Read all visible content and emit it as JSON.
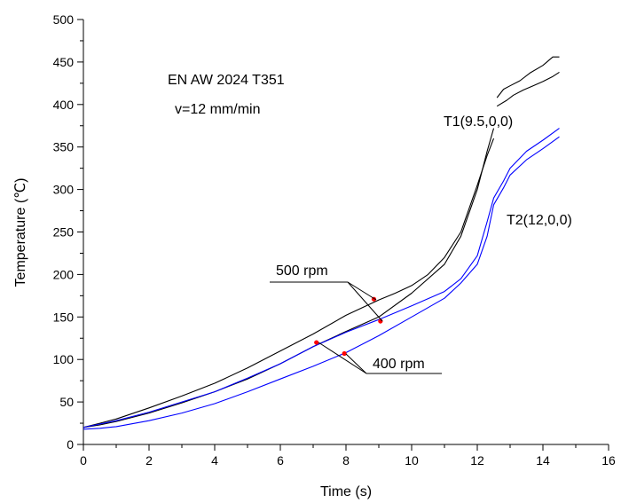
{
  "chart_data": {
    "type": "line",
    "xlabel": "Time (s)",
    "ylabel": "Temperature (℃)",
    "xlim": [
      0,
      16
    ],
    "ylim": [
      0,
      500
    ],
    "x_ticks": [
      0,
      2,
      4,
      6,
      8,
      10,
      12,
      14,
      16
    ],
    "y_ticks": [
      0,
      50,
      100,
      150,
      200,
      250,
      300,
      350,
      400,
      450,
      500
    ],
    "grid": false,
    "annotations": {
      "material": "EN AW 2024 T351",
      "speed": "v=12 mm/min",
      "t1": "T1(9.5,0,0)",
      "t2": "T2(12,0,0)",
      "rpm500": "500 rpm",
      "rpm400": "400 rpm"
    },
    "series": [
      {
        "color": "#000000",
        "x": [
          0,
          0.5,
          1,
          2,
          3,
          4,
          5,
          6,
          7,
          8,
          9,
          9.5,
          10,
          10.5,
          11,
          11.5,
          12,
          12.3,
          12.5
        ],
        "y": [
          20,
          25,
          30,
          43,
          57,
          72,
          90,
          110,
          130,
          152,
          170,
          178,
          187,
          200,
          220,
          250,
          305,
          340,
          360
        ]
      },
      {
        "color": "#000000",
        "x": [
          12.6,
          12.8,
          13,
          13.3,
          13.6,
          14,
          14.3,
          14.5
        ],
        "y": [
          408,
          418,
          422,
          428,
          437,
          446,
          456,
          456
        ]
      },
      {
        "color": "#000000",
        "x": [
          0,
          0.5,
          1,
          2,
          3,
          4,
          5,
          6,
          7,
          8,
          9,
          10,
          11,
          11.5,
          12,
          12.3,
          12.5
        ],
        "y": [
          20,
          23,
          27,
          37,
          49,
          62,
          77,
          95,
          115,
          133,
          150,
          178,
          212,
          245,
          300,
          345,
          372
        ]
      },
      {
        "color": "#000000",
        "x": [
          12.6,
          12.9,
          13.1,
          13.4,
          13.7,
          14,
          14.3,
          14.5
        ],
        "y": [
          398,
          405,
          411,
          417,
          422,
          427,
          433,
          438
        ]
      },
      {
        "color": "#0000ff",
        "x": [
          0,
          0.5,
          1,
          2,
          3,
          4,
          5,
          6,
          7,
          8,
          9,
          10,
          11,
          11.5,
          12,
          12.3,
          12.5,
          12.8,
          13,
          13.5,
          14,
          14.5
        ],
        "y": [
          20,
          24,
          28,
          38,
          50,
          62,
          78,
          95,
          115,
          132,
          147,
          163,
          180,
          195,
          222,
          262,
          290,
          310,
          325,
          345,
          358,
          372
        ]
      },
      {
        "color": "#0000ff",
        "x": [
          0,
          0.5,
          1,
          2,
          3,
          4,
          5,
          6,
          7,
          8,
          9,
          10,
          11,
          11.5,
          12,
          12.3,
          12.5,
          12.8,
          13,
          13.5,
          14,
          14.5
        ],
        "y": [
          18,
          19,
          21,
          28,
          37,
          48,
          62,
          77,
          92,
          108,
          128,
          150,
          172,
          190,
          212,
          245,
          282,
          302,
          317,
          335,
          348,
          362
        ]
      }
    ],
    "markers": [
      {
        "x": 8.85,
        "y": 171
      },
      {
        "x": 9.05,
        "y": 145
      },
      {
        "x": 7.1,
        "y": 120
      },
      {
        "x": 7.95,
        "y": 107
      }
    ],
    "marker_color": "#ff0000"
  }
}
